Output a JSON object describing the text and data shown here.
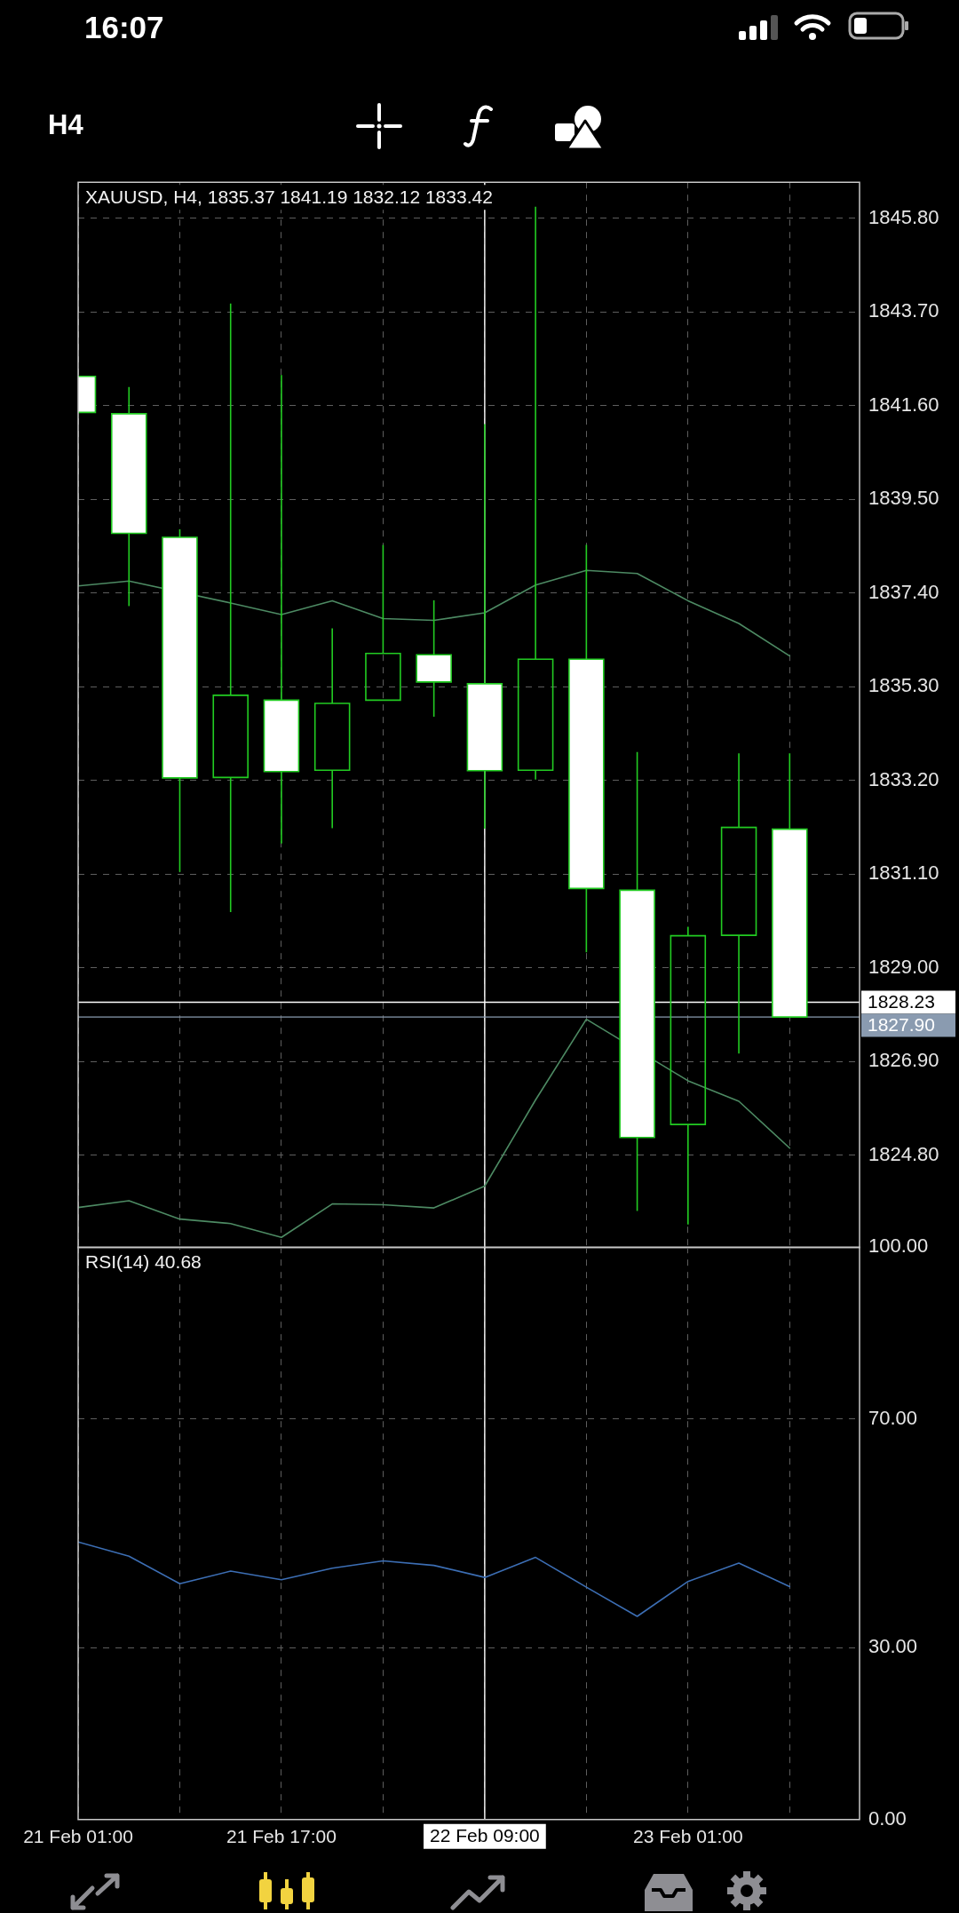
{
  "chart_data": [
    {
      "type": "candlestick",
      "title": "XAUUSD, H4, 1835.37 1841.19 1832.12 1833.42",
      "annotations": [
        "16:07",
        "H4"
      ],
      "x": [
        "--02-21T01:00",
        "--02-21T05:00",
        "--02-21T09:00",
        "--02-21T13:00",
        "--02-21T17:00",
        "--02-21T21:00",
        "--02-22T01:00",
        "--02-22T05:00",
        "--02-22T09:00",
        "--02-22T13:00",
        "--02-22T17:00",
        "--02-22T21:00",
        "--02-23T01:00",
        "--02-23T05:00",
        "--02-23T09:00"
      ],
      "ohlc": [
        [
          1842.26,
          1842.26,
          1841.45,
          1841.45
        ],
        [
          1841.42,
          1842.02,
          1837.11,
          1838.74
        ],
        [
          1838.65,
          1838.83,
          1831.15,
          1833.26
        ],
        [
          1833.27,
          1843.89,
          1830.25,
          1835.11
        ],
        [
          1835.0,
          1842.29,
          1831.79,
          1833.4
        ],
        [
          1833.43,
          1836.61,
          1832.13,
          1834.93
        ],
        [
          1835.0,
          1838.48,
          1835.0,
          1836.05
        ],
        [
          1836.02,
          1837.24,
          1834.63,
          1835.41
        ],
        [
          1835.37,
          1841.19,
          1832.12,
          1833.42
        ],
        [
          1833.43,
          1846.06,
          1833.22,
          1835.92
        ],
        [
          1835.92,
          1838.48,
          1829.35,
          1830.78
        ],
        [
          1830.74,
          1833.84,
          1823.55,
          1825.2
        ],
        [
          1825.49,
          1829.92,
          1823.25,
          1829.72
        ],
        [
          1829.73,
          1833.81,
          1827.08,
          1832.15
        ],
        [
          1832.11,
          1833.81,
          1827.9,
          1827.9
        ]
      ],
      "color": "#22cc22",
      "colors": [
        "#ffffff",
        "#ffffff",
        "#ffffff",
        "#22cc22",
        "#ffffff",
        "#22cc22",
        "#22cc22",
        "#ffffff",
        "#ffffff",
        "#22cc22",
        "#ffffff",
        "#ffffff",
        "#22cc22",
        "#22cc22",
        "#ffffff"
      ],
      "series": [
        {
          "type": "line",
          "color": "#4d8a63",
          "values": [
            1837.56,
            1837.67,
            null,
            1837.18,
            1836.92,
            1837.23,
            1836.83,
            1836.79,
            1836.96,
            1837.58,
            1837.91,
            1837.84,
            1837.23,
            1836.72,
            1835.99
          ]
        },
        {
          "type": "line",
          "color": "#4d8a63",
          "values": [
            1823.63,
            1823.78,
            1823.37,
            1823.27,
            1822.96,
            1823.71,
            1823.69,
            1823.62,
            1824.11,
            1826.04,
            1827.85,
            null,
            1826.47,
            1826.01,
            1824.96
          ]
        }
      ],
      "xlim": [
        "--02-21T01:00",
        "--02-23T14:30"
      ],
      "xticks": [
        {
          "value": "--02-21T01:00",
          "label": null
        },
        {
          "value": "--02-21T09:00",
          "label": null
        },
        {
          "value": "--02-21T17:00",
          "label": null
        },
        {
          "value": "--02-22T01:00",
          "label": null
        },
        {
          "value": "--02-22T09:00",
          "label": null
        },
        {
          "value": "--02-22T17:00",
          "label": null
        },
        {
          "value": "--02-23T01:00",
          "label": null
        },
        {
          "value": "--02-23T09:00",
          "label": null
        }
      ],
      "ylim": [
        1822.73,
        1846.61
      ],
      "yticks": [
        {
          "value": 1824.8,
          "label": "1824.80"
        },
        {
          "value": 1826.9,
          "label": "1826.90"
        },
        {
          "value": 1829,
          "label": "1829.00"
        },
        {
          "value": 1831.1,
          "label": "1831.10"
        },
        {
          "value": 1833.2,
          "label": "1833.20"
        },
        {
          "value": 1835.3,
          "label": "1835.30"
        },
        {
          "value": 1837.4,
          "label": "1837.40"
        },
        {
          "value": 1839.5,
          "label": "1839.50"
        },
        {
          "value": 1841.6,
          "label": "1841.60"
        },
        {
          "value": 1843.7,
          "label": "1843.70"
        },
        {
          "value": 1845.8,
          "label": "1845.80"
        }
      ],
      "grid": true,
      "tick_labels": "y",
      "ref_lines": [
        {
          "axis": "x",
          "value": "--02-22T09:00",
          "color": "#ffffff"
        },
        {
          "axis": "y",
          "value": 1828.23,
          "label": "1828.23",
          "color": "#ffffff"
        },
        {
          "axis": "y",
          "value": 1827.9,
          "label": "1827.90",
          "color": "#8a9bb0"
        }
      ]
    },
    {
      "type": "line",
      "title": "RSI(14) 40.68",
      "x": [
        "--02-21T01:00",
        "--02-21T05:00",
        "--02-21T09:00",
        "--02-21T13:00",
        "--02-21T17:00",
        "--02-21T21:00",
        "--02-22T01:00",
        "--02-22T05:00",
        "--02-22T09:00",
        "--02-22T13:00",
        "--02-22T17:00",
        "--02-22T21:00",
        "--02-23T01:00",
        "--02-23T05:00",
        "--02-23T09:00"
      ],
      "values": [
        48.5,
        46.0,
        41.2,
        43.4,
        41.9,
        43.9,
        45.2,
        44.4,
        42.3,
        45.8,
        40.6,
        35.5,
        41.6,
        44.8,
        40.7
      ],
      "color": "#3c6eb4",
      "xlim": [
        "--02-21T01:00",
        "--02-23T14:30"
      ],
      "xticks": [
        {
          "value": "--02-21T01:00",
          "label": "21 Feb 01:00"
        },
        {
          "value": "--02-21T09:00",
          "label": null
        },
        {
          "value": "--02-21T17:00",
          "label": "21 Feb 17:00"
        },
        {
          "value": "--02-22T01:00",
          "label": null
        },
        {
          "value": "--02-22T09:00",
          "label": null
        },
        {
          "value": "--02-22T17:00",
          "label": null
        },
        {
          "value": "--02-23T01:00",
          "label": "23 Feb 01:00"
        },
        {
          "value": "--02-23T09:00",
          "label": null
        }
      ],
      "ylim": [
        0,
        100
      ],
      "yticks": [
        {
          "value": 0,
          "label": "0.00"
        },
        {
          "value": 30,
          "label": "30.00"
        },
        {
          "value": 70,
          "label": "70.00"
        },
        {
          "value": 100,
          "label": "100.00"
        }
      ],
      "grid": true,
      "ref_lines": [
        {
          "axis": "x",
          "value": "--02-22T09:00",
          "label": "22 Feb 09:00",
          "color": "#ffffff"
        }
      ]
    }
  ]
}
